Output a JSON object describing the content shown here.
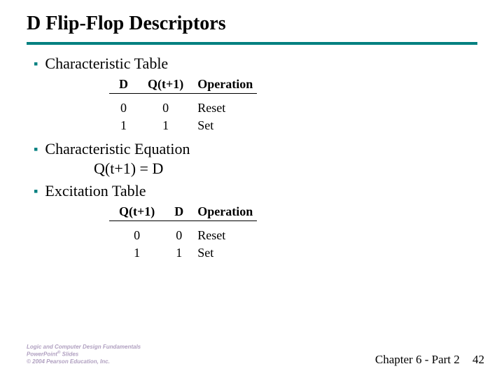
{
  "title": "D Flip-Flop Descriptors",
  "accent_color": "#008080",
  "sections": {
    "charTableTitle": "Characteristic Table",
    "charEqTitle": "Characteristic Equation",
    "charEqBody": "Q(t+1) = D",
    "excTableTitle": "Excitation Table"
  },
  "charTable": {
    "headers": {
      "c0": "D",
      "c1": "Q(t+1)",
      "c2": "Operation"
    },
    "rows": [
      {
        "c0": "0",
        "c1": "0",
        "c2": "Reset"
      },
      {
        "c0": "1",
        "c1": "1",
        "c2": "Set"
      }
    ]
  },
  "excTable": {
    "headers": {
      "c0": "Q(t+1)",
      "c1": "D",
      "c2": "Operation"
    },
    "rows": [
      {
        "c0": "0",
        "c1": "0",
        "c2": "Reset"
      },
      {
        "c0": "1",
        "c1": "1",
        "c2": "Set"
      }
    ]
  },
  "footer": {
    "line1": "Logic and Computer Design Fundamentals",
    "line2a": "PowerPoint",
    "line2sup": "®",
    "line2b": " Slides",
    "line3": "© 2004 Pearson Education, Inc.",
    "right": "Chapter 6 - Part 2",
    "page": "42"
  }
}
